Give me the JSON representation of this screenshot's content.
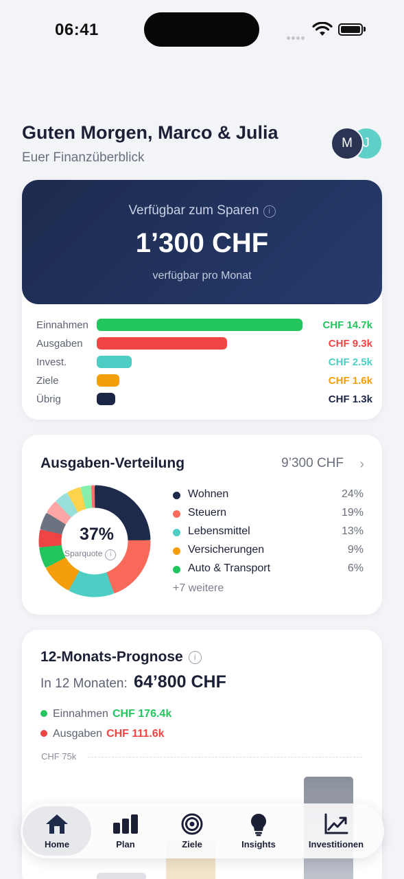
{
  "status": {
    "time": "06:41"
  },
  "header": {
    "greeting": "Guten Morgen, Marco & Julia",
    "subtitle": "Euer Finanzüberblick",
    "avatars": [
      "M",
      "J"
    ]
  },
  "savings": {
    "label": "Verfügbar zum Sparen",
    "amount": "1’300 CHF",
    "per_month": "verfügbar pro Monat",
    "bars": [
      {
        "label": "Einnahmen",
        "value": "CHF 14.7k",
        "amount": 14.7,
        "color": "#22c55e"
      },
      {
        "label": "Ausgaben",
        "value": "CHF 9.3k",
        "amount": 9.3,
        "color": "#ef4444"
      },
      {
        "label": "Invest.",
        "value": "CHF 2.5k",
        "amount": 2.5,
        "color": "#4ecdc4"
      },
      {
        "label": "Ziele",
        "value": "CHF 1.6k",
        "amount": 1.6,
        "color": "#f59e0b"
      },
      {
        "label": "Übrig",
        "value": "CHF 1.3k",
        "amount": 1.3,
        "color": "#1b2545"
      }
    ]
  },
  "distribution": {
    "title": "Ausgaben-Verteilung",
    "total": "9’300 CHF",
    "savings_rate": "37%",
    "savings_rate_label": "Sparquote",
    "legend": [
      {
        "name": "Wohnen",
        "pct": "24%",
        "color": "#1e2a4a"
      },
      {
        "name": "Steuern",
        "pct": "19%",
        "color": "#fa6a5a"
      },
      {
        "name": "Lebensmittel",
        "pct": "13%",
        "color": "#4ecdc4"
      },
      {
        "name": "Versicherungen",
        "pct": "9%",
        "color": "#f59e0b"
      },
      {
        "name": "Auto & Transport",
        "pct": "6%",
        "color": "#22c55e"
      }
    ],
    "more": "+7 weitere",
    "segments": [
      {
        "value": 24,
        "color": "#1e2a4a"
      },
      {
        "value": 19,
        "color": "#fa6a5a"
      },
      {
        "value": 13,
        "color": "#4ecdc4"
      },
      {
        "value": 9,
        "color": "#f59e0b"
      },
      {
        "value": 6,
        "color": "#22c55e"
      },
      {
        "value": 5,
        "color": "#ef4444"
      },
      {
        "value": 5,
        "color": "#6b7280"
      },
      {
        "value": 4,
        "color": "#fca5a5"
      },
      {
        "value": 4,
        "color": "#99e0dc"
      },
      {
        "value": 4,
        "color": "#fcd34d"
      },
      {
        "value": 3,
        "color": "#86efac"
      },
      {
        "value": 1,
        "color": "#f87171"
      }
    ]
  },
  "forecast": {
    "title": "12-Monats-Prognose",
    "subtitle": "In 12 Monaten:",
    "amount": "64’800 CHF",
    "income_label": "Einnahmen",
    "income_value": "CHF 176.4k",
    "income_color": "#22c55e",
    "expense_label": "Ausgaben",
    "expense_value": "CHF 111.6k",
    "expense_color": "#ef4444",
    "grid_label": "CHF 75k"
  },
  "tabs": [
    {
      "label": "Home",
      "icon": "home-icon",
      "active": true
    },
    {
      "label": "Plan",
      "icon": "bar-chart-icon",
      "active": false
    },
    {
      "label": "Ziele",
      "icon": "target-icon",
      "active": false
    },
    {
      "label": "Insights",
      "icon": "lightbulb-icon",
      "active": false
    },
    {
      "label": "Investitionen",
      "icon": "trend-chart-icon",
      "active": false
    }
  ]
}
